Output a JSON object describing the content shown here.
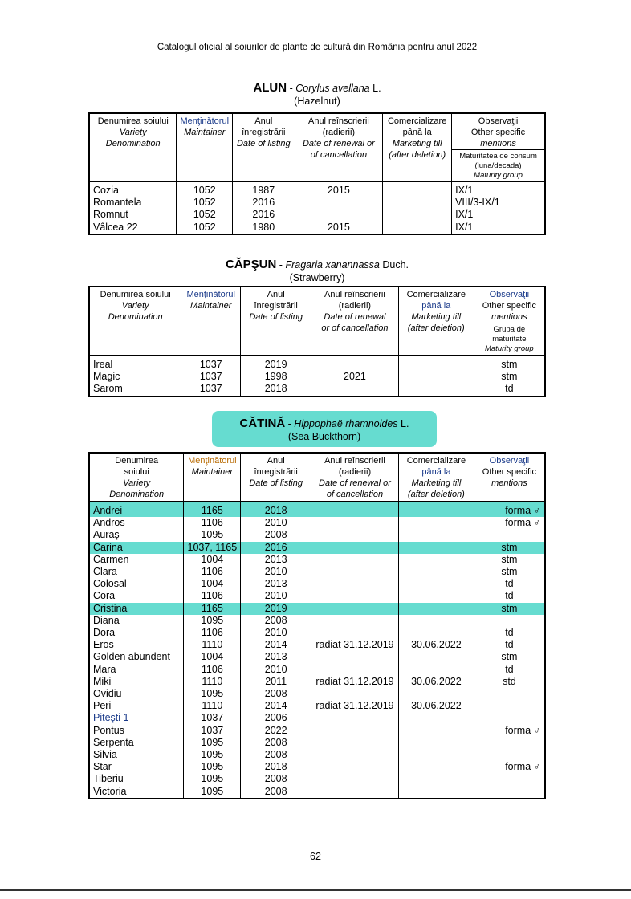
{
  "header": "Catalogul oficial al soiurilor de plante de cultură din România pentru anul  2022",
  "page_number": "62",
  "highlight_color": "#66dcd0",
  "sections": [
    {
      "name": "ALUN",
      "latin": "Corylus avellana",
      "author": "L.",
      "english": "(Hazelnut)",
      "headers": [
        [
          "Denumirea soiului",
          "Variety",
          "Denomination"
        ],
        [
          "Menţinătorul",
          "Maintainer"
        ],
        [
          "Anul",
          "înregistrării",
          "Date of listing"
        ],
        [
          "Anul reînscrierii",
          "(radierii)",
          "Date of renewal or",
          "of cancellation"
        ],
        [
          "Comercializare",
          "până la",
          "Marketing till",
          "(after deletion)"
        ],
        [
          "Observaţii",
          "Other specific",
          "mentions"
        ]
      ],
      "subheader": [
        "Maturitatea de consum",
        "(luna/decada)",
        "Maturity group"
      ],
      "rows": [
        [
          "Cozia",
          "1052",
          "1987",
          "2015",
          "",
          "IX/1"
        ],
        [
          "Romantela",
          "1052",
          "2016",
          "",
          "",
          "VIII/3-IX/1"
        ],
        [
          "Romnut",
          "1052",
          "2016",
          "",
          "",
          "IX/1"
        ],
        [
          "Vâlcea 22",
          "1052",
          "1980",
          "2015",
          "",
          "IX/1"
        ]
      ]
    },
    {
      "name": "CĂPŞUN",
      "latin": "Fragaria xanannassa",
      "author": "Duch.",
      "english": "(Strawberry)",
      "headers": [
        [
          "Denumirea soiului",
          "Variety",
          "Denomination"
        ],
        [
          "Menţinătorul",
          "Maintainer"
        ],
        [
          "Anul",
          "înregistrării",
          "Date of listing"
        ],
        [
          "Anul reînscrierii",
          "(radierii)",
          "Date of renewal",
          "or of cancellation"
        ],
        [
          "Comercializare",
          "până la",
          "Marketing till",
          "(after deletion)"
        ],
        [
          "Observaţii",
          "Other specific",
          "mentions"
        ]
      ],
      "subheader": [
        "Grupa de",
        "maturitate",
        "Maturity group"
      ],
      "rows": [
        [
          "Ireal",
          "1037",
          "2019",
          "",
          "",
          "stm"
        ],
        [
          "Magic",
          "1037",
          "1998",
          "2021",
          "",
          "stm"
        ],
        [
          "Sarom",
          "1037",
          "2018",
          "",
          "",
          "td"
        ]
      ]
    },
    {
      "name": "CĂTINĂ",
      "latin": "Hippophaë rhamnoides",
      "author": "L.",
      "english": "(Sea Buckthorn)",
      "headers": [
        [
          "Denumirea",
          "soiului",
          "Variety",
          "Denomination"
        ],
        [
          "Menţinătorul",
          "Maintainer"
        ],
        [
          "Anul",
          "înregistrării",
          "Date of listing"
        ],
        [
          "Anul reînscrierii",
          "(radierii)",
          "Date of renewal or",
          "of cancellation"
        ],
        [
          "Comercializare",
          "până la",
          "Marketing till",
          "(after deletion)"
        ],
        [
          "Observaţii",
          "Other specific",
          "mentions"
        ]
      ],
      "highlighted_rows": [
        "Andrei",
        "Carina",
        "Cristina"
      ],
      "rows": [
        [
          "Andrei",
          "1165",
          "2018",
          "",
          "",
          "forma ♂"
        ],
        [
          "Andros",
          "1106",
          "2010",
          "",
          "",
          "forma ♂"
        ],
        [
          "Auraş",
          "1095",
          "2008",
          "",
          "",
          ""
        ],
        [
          "Carina",
          "1037, 1165",
          "2016",
          "",
          "",
          "stm"
        ],
        [
          "Carmen",
          "1004",
          "2013",
          "",
          "",
          "stm"
        ],
        [
          "Clara",
          "1106",
          "2010",
          "",
          "",
          "stm"
        ],
        [
          "Colosal",
          "1004",
          "2013",
          "",
          "",
          "td"
        ],
        [
          "Cora",
          "1106",
          "2010",
          "",
          "",
          "td"
        ],
        [
          "Cristina",
          "1165",
          "2019",
          "",
          "",
          "stm"
        ],
        [
          "Diana",
          "1095",
          "2008",
          "",
          "",
          ""
        ],
        [
          "Dora",
          "1106",
          "2010",
          "",
          "",
          "td"
        ],
        [
          "Eros",
          "1110",
          "2014",
          "radiat  31.12.2019",
          "30.06.2022",
          "td"
        ],
        [
          "Golden abundent",
          "1004",
          "2013",
          "",
          "",
          "stm"
        ],
        [
          "Mara",
          "1106",
          "2010",
          "",
          "",
          "td"
        ],
        [
          "Miki",
          "1110",
          "2011",
          "radiat  31.12.2019",
          "30.06.2022",
          "std"
        ],
        [
          "Ovidiu",
          "1095",
          "2008",
          "",
          "",
          ""
        ],
        [
          "Peri",
          "1110",
          "2014",
          "radiat  31.12.2019",
          "30.06.2022",
          ""
        ],
        [
          "Piteşti 1",
          "1037",
          "2006",
          "",
          "",
          ""
        ],
        [
          "Pontus",
          "1037",
          "2022",
          "",
          "",
          "forma ♂"
        ],
        [
          "Serpenta",
          "1095",
          "2008",
          "",
          "",
          ""
        ],
        [
          "Silvia",
          "1095",
          "2008",
          "",
          "",
          ""
        ],
        [
          "Star",
          "1095",
          "2018",
          "",
          "",
          "forma ♂"
        ],
        [
          "Tiberiu",
          "1095",
          "2008",
          "",
          "",
          ""
        ],
        [
          "Victoria",
          "1095",
          "2008",
          "",
          "",
          ""
        ]
      ]
    }
  ]
}
